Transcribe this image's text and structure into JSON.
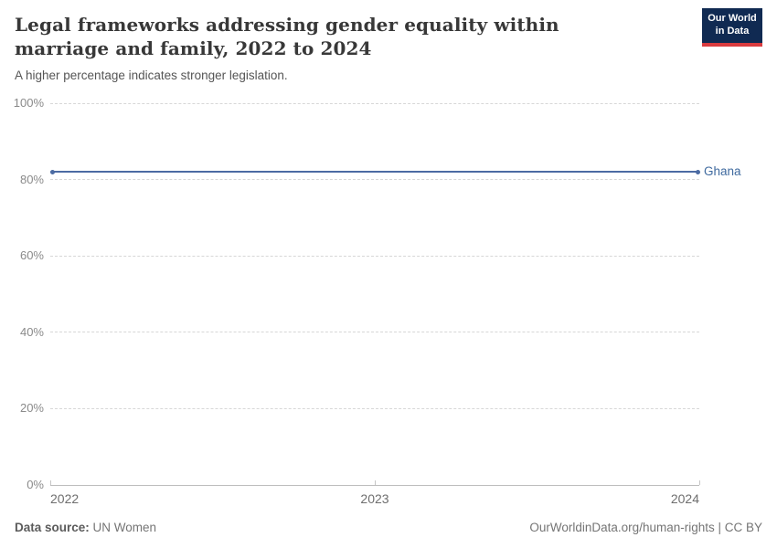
{
  "header": {
    "title": "Legal frameworks addressing gender equality within marriage and family, 2022 to 2024",
    "subtitle": "A higher percentage indicates stronger legislation.",
    "logo": {
      "line1": "Our World",
      "line2": "in Data"
    }
  },
  "chart_data": {
    "type": "line",
    "title": "Legal frameworks addressing gender equality within marriage and family, 2022 to 2024",
    "series": [
      {
        "name": "Ghana",
        "x": [
          2022,
          2023,
          2024
        ],
        "values": [
          82,
          82,
          82
        ],
        "color": "#4c6ba3",
        "label_color": "#3f6a9f"
      }
    ],
    "xlabel": "",
    "ylabel": "",
    "xlim": [
      2022,
      2024
    ],
    "ylim": [
      0,
      100
    ],
    "xticks": [
      2022,
      2023,
      2024
    ],
    "yticks": [
      0,
      20,
      40,
      60,
      80,
      100
    ],
    "ytick_suffix": "%",
    "grid": "horizontal-dashed",
    "legend_position": "end-of-line-label"
  },
  "footer": {
    "datasource_label": "Data source:",
    "datasource_value": "UN Women",
    "link": "OurWorldinData.org/human-rights | CC BY"
  },
  "colors": {
    "series_blue": "#4c6ba3",
    "series_label_blue": "#3f6a9f",
    "logo_navy": "#102a52",
    "logo_red": "#d93b3f",
    "gridline": "#d7d7d7",
    "axis": "#bdbdbd"
  }
}
